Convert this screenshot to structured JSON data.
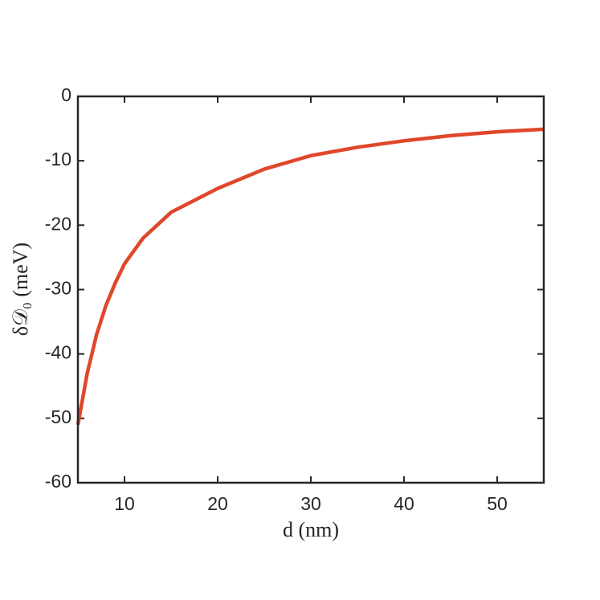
{
  "chart_data": {
    "type": "line",
    "xlabel": "d (nm)",
    "ylabel": "δ𝒟₀ (meV)",
    "x": [
      5,
      6,
      7,
      8,
      9,
      10,
      12,
      15,
      20,
      25,
      30,
      35,
      40,
      45,
      50,
      55
    ],
    "series": [
      {
        "color": "#e0472a",
        "values": [
          -51,
          -43,
          -37,
          -32.5,
          -29,
          -26,
          -22,
          -18,
          -14.3,
          -11.3,
          -9.2,
          -7.9,
          -6.9,
          -6.1,
          -5.5,
          -5.1
        ]
      }
    ],
    "xlim": [
      5,
      55
    ],
    "ylim": [
      -60,
      0
    ],
    "xticks": [
      10,
      20,
      30,
      40,
      50
    ],
    "yticks": [
      -60,
      -50,
      -40,
      -30,
      -20,
      -10,
      0
    ]
  }
}
